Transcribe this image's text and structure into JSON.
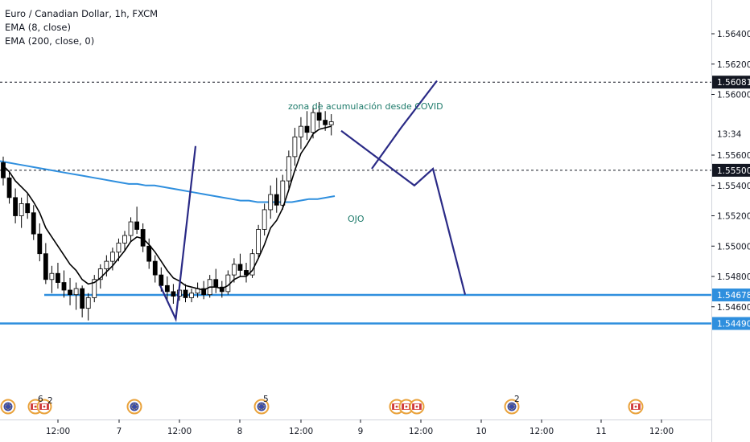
{
  "header": {
    "symbol_line": "Euro / Canadian Dollar, 1h, FXCM",
    "ema_fast": "EMA (8, close)",
    "ema_slow": "EMA (200, close, 0)"
  },
  "chart_data": {
    "type": "candlestick",
    "y_ticks": [
      "1.56400",
      "1.56200",
      "1.56000",
      "1.55600",
      "1.55400",
      "1.55200",
      "1.55000",
      "1.54800",
      "1.54600"
    ],
    "ylim": [
      1.5438,
      1.5663
    ],
    "x_ticks": [
      "12:00",
      "7",
      "12:00",
      "8",
      "12:00",
      "9",
      "12:00",
      "10",
      "12:00",
      "11",
      "12:00"
    ],
    "price_tags": [
      {
        "label": "1.56081",
        "value": 1.56081,
        "style": "dark"
      },
      {
        "label": "13:34",
        "value": 1.5574,
        "style": "plain"
      },
      {
        "label": "1.55500",
        "value": 1.555,
        "style": "dark"
      },
      {
        "label": "1.54678",
        "value": 1.54678,
        "style": "blue"
      },
      {
        "label": "1.54490",
        "value": 1.5449,
        "style": "blue"
      }
    ],
    "horizontal_lines": [
      {
        "value": 1.56081,
        "style": "dashed"
      },
      {
        "value": 1.555,
        "style": "dashed"
      },
      {
        "value": 1.54678,
        "style": "solid-blue"
      },
      {
        "value": 1.5449,
        "style": "solid-blue"
      }
    ],
    "annotations": [
      {
        "text": "zona de acumulación desde COVID",
        "color": "#1e7b6b"
      },
      {
        "text": "OJO",
        "color": "#1e7b6b"
      }
    ],
    "event_badges": [
      "6",
      "2",
      "5",
      "2"
    ],
    "candles": [
      [
        1.5555,
        1.5559,
        1.554,
        1.5545
      ],
      [
        1.5545,
        1.5549,
        1.5528,
        1.5532
      ],
      [
        1.5532,
        1.5538,
        1.5515,
        1.552
      ],
      [
        1.552,
        1.5532,
        1.5512,
        1.5528
      ],
      [
        1.5528,
        1.5535,
        1.5518,
        1.5522
      ],
      [
        1.5522,
        1.5527,
        1.5504,
        1.5508
      ],
      [
        1.5508,
        1.5515,
        1.549,
        1.5495
      ],
      [
        1.5495,
        1.5502,
        1.5475,
        1.5478
      ],
      [
        1.5478,
        1.5487,
        1.5469,
        1.5482
      ],
      [
        1.5482,
        1.5489,
        1.5472,
        1.5476
      ],
      [
        1.5476,
        1.5484,
        1.5466,
        1.5471
      ],
      [
        1.5471,
        1.5479,
        1.5461,
        1.5468
      ],
      [
        1.5468,
        1.5476,
        1.5458,
        1.5472
      ],
      [
        1.5472,
        1.5474,
        1.5453,
        1.5459
      ],
      [
        1.5459,
        1.5469,
        1.5451,
        1.5466
      ],
      [
        1.5466,
        1.5481,
        1.5463,
        1.5478
      ],
      [
        1.5478,
        1.5488,
        1.5472,
        1.5485
      ],
      [
        1.5485,
        1.5494,
        1.548,
        1.549
      ],
      [
        1.549,
        1.5499,
        1.5484,
        1.5496
      ],
      [
        1.5496,
        1.5505,
        1.549,
        1.5502
      ],
      [
        1.5502,
        1.551,
        1.5497,
        1.5507
      ],
      [
        1.5507,
        1.5519,
        1.5503,
        1.5516
      ],
      [
        1.5516,
        1.5526,
        1.5508,
        1.5511
      ],
      [
        1.5511,
        1.5515,
        1.5496,
        1.55
      ],
      [
        1.55,
        1.5505,
        1.5485,
        1.549
      ],
      [
        1.549,
        1.5494,
        1.5476,
        1.5481
      ],
      [
        1.5481,
        1.5486,
        1.547,
        1.5474
      ],
      [
        1.5474,
        1.548,
        1.5464,
        1.547
      ],
      [
        1.547,
        1.5475,
        1.5462,
        1.5467
      ],
      [
        1.5467,
        1.5474,
        1.5464,
        1.5471
      ],
      [
        1.5471,
        1.5475,
        1.5463,
        1.5466
      ],
      [
        1.5466,
        1.5472,
        1.5463,
        1.5469
      ],
      [
        1.5469,
        1.5476,
        1.5466,
        1.5472
      ],
      [
        1.5472,
        1.5477,
        1.5465,
        1.5468
      ],
      [
        1.5468,
        1.5481,
        1.5466,
        1.5478
      ],
      [
        1.5478,
        1.5485,
        1.5469,
        1.5473
      ],
      [
        1.5473,
        1.5477,
        1.5466,
        1.547
      ],
      [
        1.547,
        1.5484,
        1.5468,
        1.5481
      ],
      [
        1.5481,
        1.5492,
        1.5476,
        1.5488
      ],
      [
        1.5488,
        1.5495,
        1.548,
        1.5484
      ],
      [
        1.5484,
        1.5489,
        1.5476,
        1.5481
      ],
      [
        1.5481,
        1.5498,
        1.5479,
        1.5495
      ],
      [
        1.5495,
        1.5514,
        1.5492,
        1.5511
      ],
      [
        1.5511,
        1.5528,
        1.5507,
        1.5524
      ],
      [
        1.5524,
        1.554,
        1.5518,
        1.5534
      ],
      [
        1.5534,
        1.5545,
        1.5522,
        1.5527
      ],
      [
        1.5527,
        1.5547,
        1.5524,
        1.5543
      ],
      [
        1.5543,
        1.5563,
        1.5538,
        1.5559
      ],
      [
        1.5559,
        1.5578,
        1.5553,
        1.5572
      ],
      [
        1.5572,
        1.5585,
        1.5564,
        1.5579
      ],
      [
        1.5579,
        1.5589,
        1.557,
        1.5575
      ],
      [
        1.5575,
        1.5592,
        1.5571,
        1.5588
      ],
      [
        1.5588,
        1.5595,
        1.5578,
        1.5583
      ],
      [
        1.5583,
        1.5589,
        1.5576,
        1.558
      ],
      [
        1.558,
        1.5587,
        1.5573,
        1.5582
      ]
    ],
    "ema8": [
      1.5553,
      1.5549,
      1.5543,
      1.5539,
      1.5535,
      1.5529,
      1.5522,
      1.5512,
      1.5506,
      1.55,
      1.5494,
      1.5488,
      1.5484,
      1.5478,
      1.5475,
      1.5476,
      1.5479,
      1.5483,
      1.5487,
      1.5492,
      1.5497,
      1.5503,
      1.5506,
      1.5505,
      1.5501,
      1.5496,
      1.549,
      1.5484,
      1.5479,
      1.5477,
      1.5474,
      1.5473,
      1.5472,
      1.5471,
      1.5473,
      1.5473,
      1.5472,
      1.5474,
      1.5478,
      1.548,
      1.548,
      1.5484,
      1.5492,
      1.5501,
      1.5512,
      1.5517,
      1.5525,
      1.5537,
      1.555,
      1.5561,
      1.5567,
      1.5574,
      1.5577,
      1.5578,
      1.5579
    ],
    "ema200": [
      1.5556,
      1.5555,
      1.5554,
      1.5553,
      1.5552,
      1.5551,
      1.555,
      1.5549,
      1.5548,
      1.5547,
      1.5546,
      1.5545,
      1.5544,
      1.5543,
      1.5542,
      1.5541,
      1.5541,
      1.554,
      1.554,
      1.5539,
      1.5538,
      1.5537,
      1.5536,
      1.5535,
      1.5534,
      1.5533,
      1.5532,
      1.5531,
      1.553,
      1.553,
      1.5529,
      1.5529,
      1.5529,
      1.5529,
      1.5529,
      1.553,
      1.5531,
      1.5531,
      1.5532,
      1.5533
    ],
    "projection_paths": [
      [
        [
          0.0,
          1.5474
        ],
        [
          0.22,
          1.5452
        ],
        [
          0.5,
          1.5566
        ]
      ],
      [
        [
          0.0,
          1.5576
        ],
        [
          0.41,
          1.5551
        ],
        [
          0.59,
          1.554
        ],
        [
          0.74,
          1.5551
        ],
        [
          1.0,
          1.5468
        ]
      ],
      [
        [
          0.0,
          1.5551
        ],
        [
          0.45,
          1.5578
        ],
        [
          1.0,
          1.5609
        ]
      ]
    ]
  }
}
